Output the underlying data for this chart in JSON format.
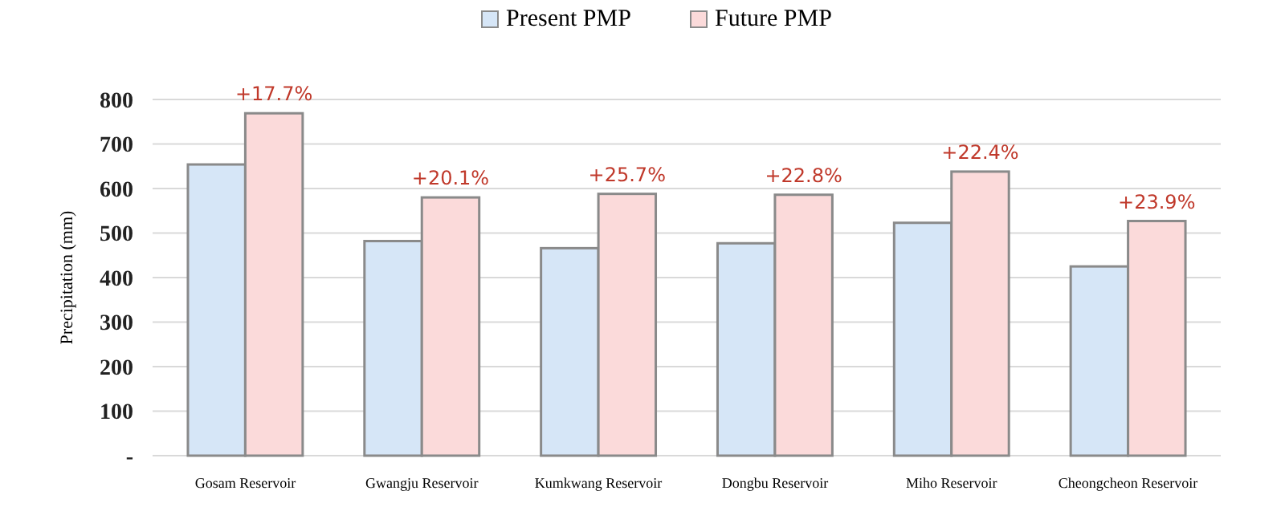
{
  "chart_data": {
    "type": "bar",
    "ylabel": "Precipitation (mm)",
    "categories": [
      "Gosam Reservoir",
      "Gwangju Reservoir",
      "Kumkwang Reservoir",
      "Dongbu Reservoir",
      "Miho Reservoir",
      "Cheongcheon Reservoir"
    ],
    "series": [
      {
        "name": "Present PMP",
        "color": "#d6e6f7",
        "values": [
          654,
          482,
          466,
          477,
          523,
          425
        ]
      },
      {
        "name": "Future PMP",
        "color": "#fbdada",
        "values": [
          769,
          580,
          588,
          586,
          638,
          527
        ]
      }
    ],
    "ylim": [
      0,
      800
    ],
    "yticks": [
      {
        "value": 0,
        "label": "-"
      },
      100,
      200,
      300,
      400,
      500,
      600,
      700,
      800
    ],
    "grid": "y",
    "legend": "top",
    "annotations": [
      {
        "text": "+17.7%",
        "x": "Gosam Reservoir",
        "y": 769
      },
      {
        "text": "+20.1%",
        "x": "Gwangju Reservoir",
        "y": 580
      },
      {
        "text": "+25.7%",
        "x": "Kumkwang Reservoir",
        "y": 588
      },
      {
        "text": "+22.8%",
        "x": "Dongbu Reservoir",
        "y": 586
      },
      {
        "text": "+22.4%",
        "x": "Miho Reservoir",
        "y": 638
      },
      {
        "text": "+23.9%",
        "x": "Cheongcheon Reservoir",
        "y": 527
      }
    ]
  }
}
